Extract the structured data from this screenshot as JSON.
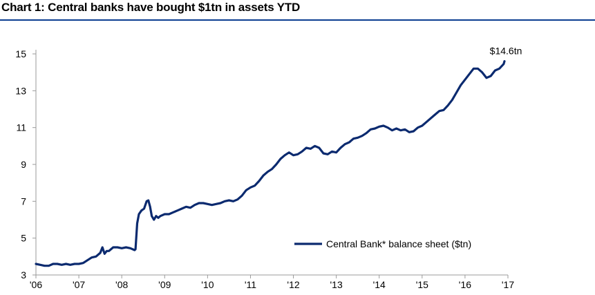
{
  "colors": {
    "series": "#0b2a6f",
    "title_rule": "#0b3d91",
    "axis": "#9a9a9a"
  },
  "chart_data": {
    "type": "line",
    "title": "Chart 1: Central banks have bought $1tn in assets YTD",
    "xlabel": "",
    "ylabel": "",
    "ylim": [
      3,
      15
    ],
    "yticks": [
      "3",
      "5",
      "7",
      "9",
      "11",
      "13",
      "15"
    ],
    "xticks": [
      "'06",
      "'07",
      "'08",
      "'09",
      "'10",
      "'11",
      "'12",
      "'13",
      "'14",
      "'15",
      "'16",
      "'17"
    ],
    "grid": false,
    "legend": {
      "placement": "bottom-right",
      "entries": [
        "Central Bank* balance sheet ($tn)"
      ]
    },
    "annotations": [
      {
        "text": "$14.6tn",
        "x": 2016.92,
        "y": 14.6
      }
    ],
    "series": [
      {
        "name": "Central Bank* balance sheet ($tn)",
        "x": [
          2006.0,
          2006.1,
          2006.2,
          2006.3,
          2006.4,
          2006.5,
          2006.6,
          2006.7,
          2006.8,
          2006.9,
          2007.0,
          2007.1,
          2007.2,
          2007.3,
          2007.4,
          2007.5,
          2007.55,
          2007.6,
          2007.65,
          2007.7,
          2007.8,
          2007.9,
          2008.0,
          2008.1,
          2008.2,
          2008.3,
          2008.32,
          2008.36,
          2008.4,
          2008.46,
          2008.52,
          2008.58,
          2008.62,
          2008.66,
          2008.7,
          2008.75,
          2008.8,
          2008.85,
          2008.9,
          2009.0,
          2009.1,
          2009.2,
          2009.3,
          2009.4,
          2009.5,
          2009.6,
          2009.7,
          2009.8,
          2009.9,
          2010.0,
          2010.1,
          2010.2,
          2010.3,
          2010.4,
          2010.5,
          2010.6,
          2010.7,
          2010.8,
          2010.9,
          2011.0,
          2011.1,
          2011.2,
          2011.3,
          2011.4,
          2011.5,
          2011.6,
          2011.7,
          2011.8,
          2011.9,
          2012.0,
          2012.1,
          2012.2,
          2012.3,
          2012.4,
          2012.5,
          2012.6,
          2012.7,
          2012.8,
          2012.9,
          2013.0,
          2013.1,
          2013.2,
          2013.3,
          2013.4,
          2013.5,
          2013.6,
          2013.7,
          2013.8,
          2013.9,
          2014.0,
          2014.1,
          2014.2,
          2014.3,
          2014.4,
          2014.5,
          2014.6,
          2014.7,
          2014.8,
          2014.9,
          2015.0,
          2015.1,
          2015.2,
          2015.3,
          2015.4,
          2015.5,
          2015.6,
          2015.7,
          2015.8,
          2015.9,
          2016.0,
          2016.1,
          2016.2,
          2016.3,
          2016.4,
          2016.5,
          2016.6,
          2016.7,
          2016.8,
          2016.9,
          2016.92
        ],
        "values": [
          3.6,
          3.55,
          3.5,
          3.5,
          3.6,
          3.6,
          3.55,
          3.6,
          3.55,
          3.6,
          3.6,
          3.65,
          3.8,
          3.95,
          4.0,
          4.2,
          4.5,
          4.15,
          4.3,
          4.3,
          4.5,
          4.5,
          4.45,
          4.5,
          4.45,
          4.35,
          4.4,
          5.8,
          6.3,
          6.5,
          6.6,
          7.0,
          7.05,
          6.7,
          6.2,
          6.0,
          6.2,
          6.1,
          6.2,
          6.3,
          6.3,
          6.4,
          6.5,
          6.6,
          6.7,
          6.65,
          6.8,
          6.9,
          6.9,
          6.85,
          6.8,
          6.85,
          6.9,
          7.0,
          7.05,
          7.0,
          7.1,
          7.3,
          7.6,
          7.75,
          7.85,
          8.1,
          8.4,
          8.6,
          8.75,
          9.0,
          9.3,
          9.5,
          9.65,
          9.5,
          9.55,
          9.7,
          9.9,
          9.85,
          10.0,
          9.9,
          9.6,
          9.55,
          9.7,
          9.65,
          9.9,
          10.1,
          10.2,
          10.4,
          10.45,
          10.55,
          10.7,
          10.9,
          10.95,
          11.05,
          11.1,
          11.0,
          10.85,
          10.95,
          10.85,
          10.9,
          10.75,
          10.8,
          11.0,
          11.1,
          11.3,
          11.5,
          11.7,
          11.9,
          11.95,
          12.2,
          12.5,
          12.9,
          13.3,
          13.6,
          13.9,
          14.2,
          14.2,
          14.0,
          13.7,
          13.8,
          14.1,
          14.2,
          14.45,
          14.6
        ]
      }
    ]
  }
}
